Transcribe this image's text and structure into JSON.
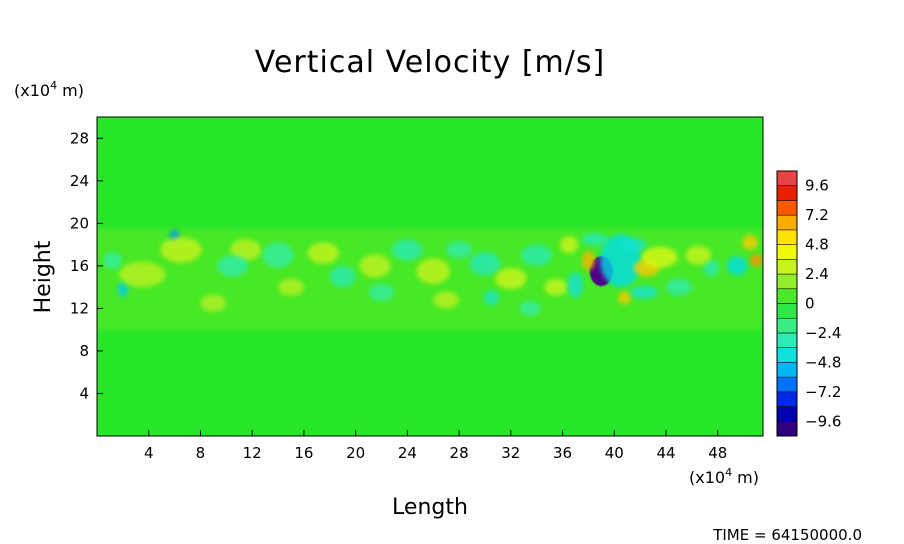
{
  "chart_data": {
    "type": "heatmap",
    "title": "Vertical Velocity [m/s]",
    "xlabel": "Length",
    "ylabel": "Height",
    "x_unit": "(x10",
    "x_unit_exp": "4",
    "x_unit_suffix": " m)",
    "y_unit": "(x10",
    "y_unit_exp": "4",
    "y_unit_suffix": " m)",
    "xlim": [
      0,
      51.5
    ],
    "ylim": [
      0,
      30
    ],
    "x_ticks": [
      4,
      8,
      12,
      16,
      20,
      24,
      28,
      32,
      36,
      40,
      44,
      48
    ],
    "y_ticks": [
      4,
      8,
      12,
      16,
      20,
      24,
      28
    ],
    "colorbar": {
      "range": [
        -10.8,
        10.8
      ],
      "tick_values": [
        9.6,
        7.2,
        4.8,
        2.4,
        0,
        -2.4,
        -4.8,
        -7.2,
        -9.6
      ],
      "tick_labels": [
        "9.6",
        "7.2",
        "4.8",
        "2.4",
        "0",
        "−2.4",
        "−4.8",
        "−7.2",
        "−9.6"
      ]
    },
    "background_value": 0,
    "active_layer": {
      "y_min": 10,
      "y_max": 19.5
    },
    "features": [
      {
        "x": 39.0,
        "y": 15.5,
        "value": -10.5,
        "rx": 0.9,
        "ry": 1.4
      },
      {
        "x": 40.5,
        "y": 16.5,
        "value": -4.5,
        "rx": 1.6,
        "ry": 2.5
      },
      {
        "x": 42.5,
        "y": 15.8,
        "value": 6.0,
        "rx": 1.0,
        "ry": 0.8
      },
      {
        "x": 38.0,
        "y": 16.5,
        "value": 6.5,
        "rx": 0.5,
        "ry": 0.9
      },
      {
        "x": 40.8,
        "y": 13.0,
        "value": 6.0,
        "rx": 0.5,
        "ry": 0.6
      },
      {
        "x": 43.5,
        "y": 16.8,
        "value": 3.6,
        "rx": 1.4,
        "ry": 1.0
      },
      {
        "x": 42.3,
        "y": 13.5,
        "value": -4.0,
        "rx": 1.1,
        "ry": 0.6
      },
      {
        "x": 41.5,
        "y": 18.0,
        "value": -3.8,
        "rx": 1.0,
        "ry": 0.6
      },
      {
        "x": 50.5,
        "y": 18.2,
        "value": 6.0,
        "rx": 0.6,
        "ry": 0.7
      },
      {
        "x": 51.0,
        "y": 16.5,
        "value": 7.0,
        "rx": 0.5,
        "ry": 0.6
      },
      {
        "x": 49.5,
        "y": 16.0,
        "value": -4.5,
        "rx": 0.8,
        "ry": 0.9
      },
      {
        "x": 47.5,
        "y": 15.8,
        "value": -3.0,
        "rx": 0.6,
        "ry": 0.8
      },
      {
        "x": 46.5,
        "y": 17.0,
        "value": 3.0,
        "rx": 1.0,
        "ry": 0.9
      },
      {
        "x": 6.0,
        "y": 18.8,
        "value": -6.0,
        "rx": 0.4,
        "ry": 0.6
      },
      {
        "x": 2.0,
        "y": 13.8,
        "value": -5.0,
        "rx": 0.4,
        "ry": 0.7
      },
      {
        "x": 6.5,
        "y": 17.5,
        "value": 3.0,
        "rx": 1.6,
        "ry": 1.2
      },
      {
        "x": 3.5,
        "y": 15.2,
        "value": 2.6,
        "rx": 1.8,
        "ry": 1.2
      },
      {
        "x": 1.2,
        "y": 16.5,
        "value": -2.6,
        "rx": 0.7,
        "ry": 0.8
      },
      {
        "x": 11.5,
        "y": 17.5,
        "value": 2.8,
        "rx": 1.2,
        "ry": 1.0
      },
      {
        "x": 10.5,
        "y": 16.0,
        "value": -2.8,
        "rx": 1.2,
        "ry": 1.0
      },
      {
        "x": 14.0,
        "y": 17.0,
        "value": -2.6,
        "rx": 1.2,
        "ry": 1.2
      },
      {
        "x": 17.5,
        "y": 17.2,
        "value": 3.0,
        "rx": 1.2,
        "ry": 1.0
      },
      {
        "x": 19.0,
        "y": 15.0,
        "value": -3.0,
        "rx": 1.0,
        "ry": 1.0
      },
      {
        "x": 21.5,
        "y": 16.0,
        "value": 2.8,
        "rx": 1.2,
        "ry": 1.1
      },
      {
        "x": 24.0,
        "y": 17.5,
        "value": -3.0,
        "rx": 1.2,
        "ry": 1.0
      },
      {
        "x": 26.0,
        "y": 15.5,
        "value": 3.0,
        "rx": 1.3,
        "ry": 1.2
      },
      {
        "x": 28.0,
        "y": 17.5,
        "value": -2.8,
        "rx": 1.0,
        "ry": 0.8
      },
      {
        "x": 30.0,
        "y": 16.2,
        "value": -3.2,
        "rx": 1.2,
        "ry": 1.1
      },
      {
        "x": 30.5,
        "y": 13.0,
        "value": -3.6,
        "rx": 0.6,
        "ry": 0.7
      },
      {
        "x": 32.0,
        "y": 14.8,
        "value": 3.2,
        "rx": 1.2,
        "ry": 1.0
      },
      {
        "x": 34.0,
        "y": 17.0,
        "value": -3.0,
        "rx": 1.2,
        "ry": 1.0
      },
      {
        "x": 35.5,
        "y": 14.0,
        "value": 3.0,
        "rx": 0.9,
        "ry": 0.8
      },
      {
        "x": 36.5,
        "y": 18.0,
        "value": 3.2,
        "rx": 0.7,
        "ry": 0.8
      },
      {
        "x": 37.0,
        "y": 14.2,
        "value": -4.0,
        "rx": 0.6,
        "ry": 1.2
      },
      {
        "x": 38.5,
        "y": 18.5,
        "value": -3.2,
        "rx": 1.0,
        "ry": 0.6
      },
      {
        "x": 15.0,
        "y": 14.0,
        "value": 2.6,
        "rx": 1.0,
        "ry": 0.8
      },
      {
        "x": 22.0,
        "y": 13.5,
        "value": -2.6,
        "rx": 1.0,
        "ry": 0.8
      },
      {
        "x": 27.0,
        "y": 12.8,
        "value": 2.6,
        "rx": 1.0,
        "ry": 0.8
      },
      {
        "x": 9.0,
        "y": 12.5,
        "value": 2.4,
        "rx": 1.0,
        "ry": 0.8
      },
      {
        "x": 45.0,
        "y": 14.0,
        "value": -2.8,
        "rx": 1.0,
        "ry": 0.8
      },
      {
        "x": 33.5,
        "y": 12.0,
        "value": -2.6,
        "rx": 0.8,
        "ry": 0.7
      }
    ]
  },
  "time_label": "TIME = ",
  "time_value": "64150000.0"
}
